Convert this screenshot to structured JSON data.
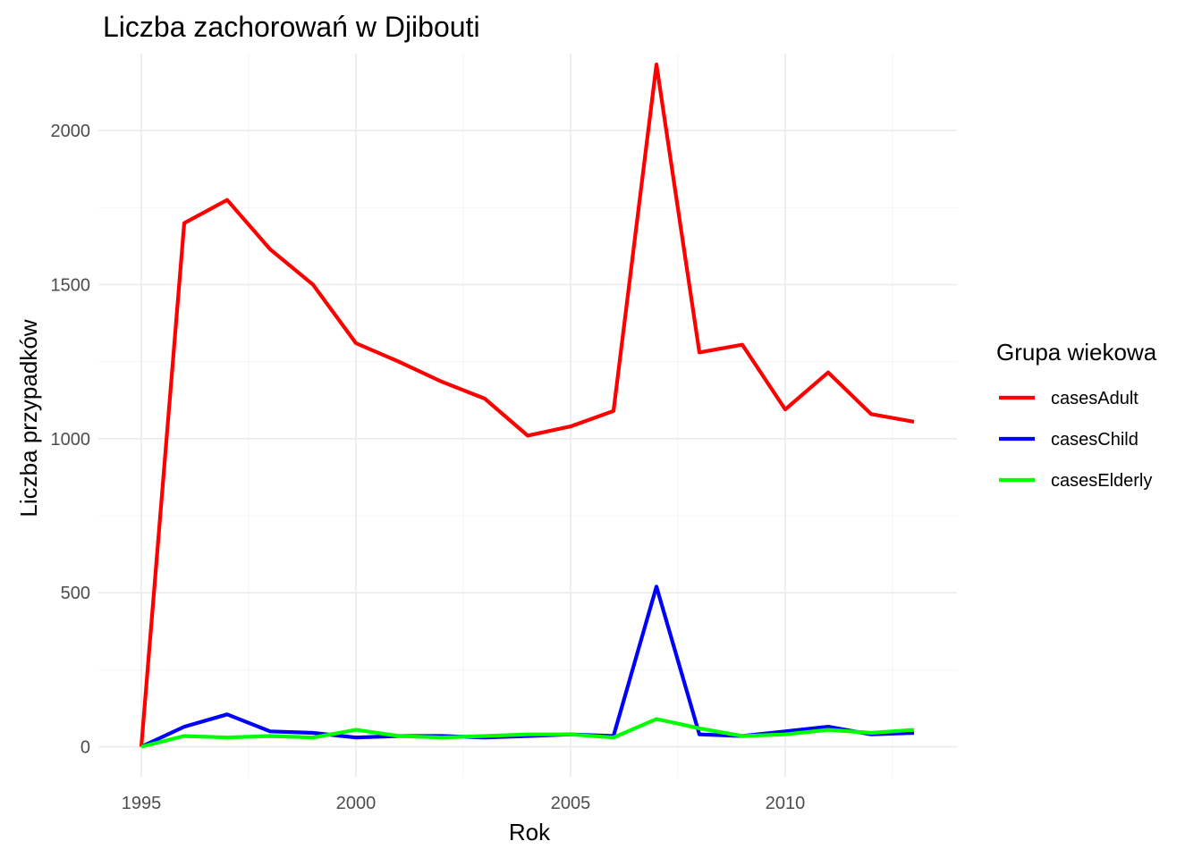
{
  "chart_data": {
    "type": "line",
    "title": "Liczba zachorowań w Djibouti",
    "xlabel": "Rok",
    "ylabel": "Liczba przypadków",
    "x": [
      1995,
      1996,
      1997,
      1998,
      1999,
      2000,
      2001,
      2002,
      2003,
      2004,
      2005,
      2006,
      2007,
      2008,
      2009,
      2010,
      2011,
      2012,
      2013
    ],
    "xlim": [
      1994,
      2014
    ],
    "ylim": [
      -100,
      2250
    ],
    "x_ticks": [
      1995,
      2000,
      2005,
      2010
    ],
    "y_ticks": [
      0,
      500,
      1000,
      1500,
      2000
    ],
    "x_tick_labels": [
      "1995",
      "2000",
      "2005",
      "2010"
    ],
    "y_tick_labels": [
      "0",
      "500",
      "1000",
      "1500",
      "2000"
    ],
    "grid": true,
    "legend": {
      "title": "Grupa wiekowa",
      "position": "right"
    },
    "series": [
      {
        "name": "casesAdult",
        "color": "#ff0000",
        "values": [
          0,
          1700,
          1775,
          1615,
          1500,
          1310,
          1250,
          1185,
          1130,
          1010,
          1040,
          1090,
          2215,
          1280,
          1305,
          1095,
          1215,
          1080,
          1055
        ]
      },
      {
        "name": "casesChild",
        "color": "#0000ff",
        "values": [
          0,
          65,
          105,
          50,
          45,
          30,
          35,
          35,
          30,
          35,
          40,
          35,
          520,
          40,
          35,
          50,
          65,
          40,
          45
        ]
      },
      {
        "name": "casesElderly",
        "color": "#00ff00",
        "values": [
          0,
          35,
          30,
          35,
          30,
          55,
          35,
          30,
          35,
          40,
          40,
          30,
          90,
          60,
          35,
          40,
          55,
          45,
          55
        ]
      }
    ]
  }
}
